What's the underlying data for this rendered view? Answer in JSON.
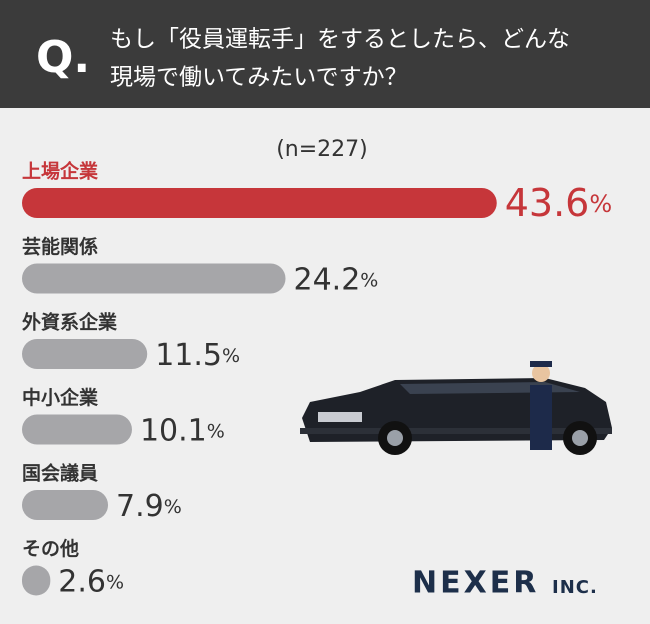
{
  "header": {
    "mark": "Q.",
    "lines": [
      "もし「役員運転手」をするとしたら、どんな",
      "現場で働いてみたいですか？"
    ]
  },
  "chart_data": {
    "type": "bar",
    "orientation": "horizontal",
    "subtitle": "(n=227)",
    "categories": [
      "上場企業",
      "芸能関係",
      "外資系企業",
      "中小企業",
      "国会議員",
      "その他"
    ],
    "values": [
      43.6,
      24.2,
      11.5,
      10.1,
      7.9,
      2.6
    ],
    "value_labels": [
      "43.6%",
      "24.2%",
      "11.5%",
      "10.1%",
      "7.9%",
      "2.6%"
    ],
    "colors": [
      "#c6363a",
      "#a6a6a9",
      "#a6a6a9",
      "#a6a6a9",
      "#a6a6a9",
      "#a6a6a9"
    ],
    "xlim": [
      0,
      45
    ]
  },
  "logo": {
    "name": "NEXER",
    "suffix": "INC."
  }
}
